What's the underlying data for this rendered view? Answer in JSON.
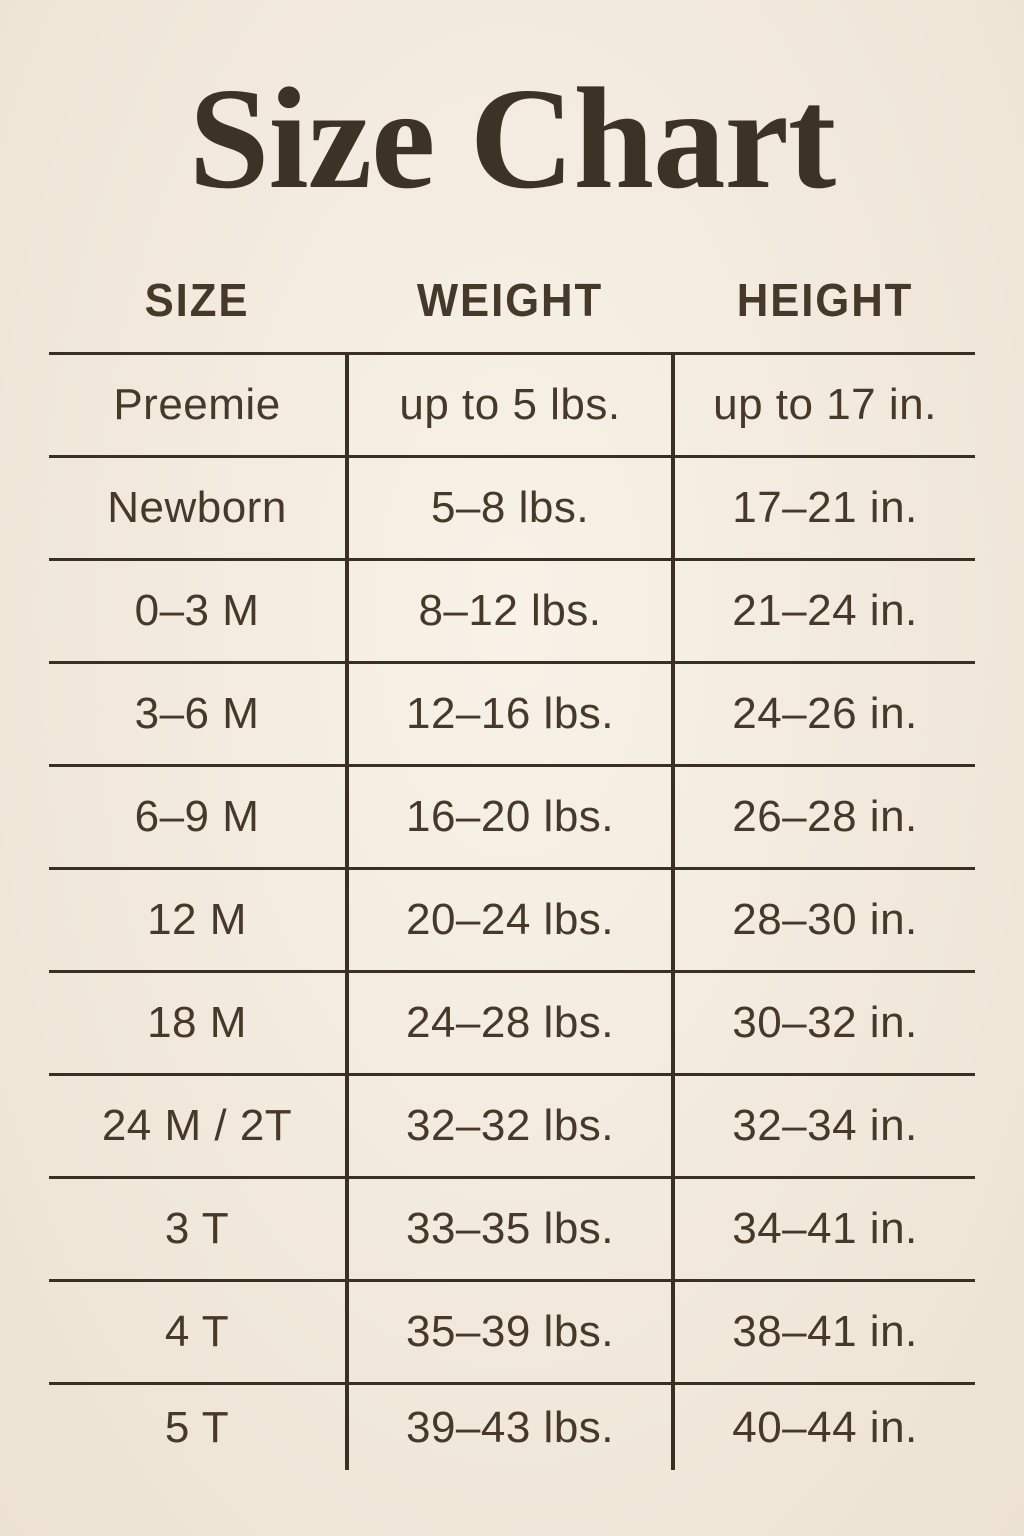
{
  "title": "Size Chart",
  "colors": {
    "bg": "#f2e9dc",
    "ink": "#46392a",
    "title": "#3d3226",
    "line": "#392f23"
  },
  "chart_data": {
    "type": "table",
    "title": "Size Chart",
    "columns": [
      "SIZE",
      "WEIGHT",
      "HEIGHT"
    ],
    "rows": [
      [
        "Preemie",
        "up to 5 lbs.",
        "up to 17 in."
      ],
      [
        "Newborn",
        "5–8 lbs.",
        "17–21 in."
      ],
      [
        "0–3 M",
        "8–12 lbs.",
        "21–24 in."
      ],
      [
        "3–6 M",
        "12–16 lbs.",
        "24–26 in."
      ],
      [
        "6–9 M",
        "16–20 lbs.",
        "26–28 in."
      ],
      [
        "12 M",
        "20–24 lbs.",
        "28–30 in."
      ],
      [
        "18 M",
        "24–28 lbs.",
        "30–32 in."
      ],
      [
        "24 M / 2T",
        "32–32 lbs.",
        "32–34 in."
      ],
      [
        "3 T",
        "33–35 lbs.",
        "34–41 in."
      ],
      [
        "4 T",
        "35–39 lbs.",
        "38–41 in."
      ],
      [
        "5 T",
        "39–43 lbs.",
        "40–44 in."
      ]
    ],
    "layout": {
      "grid": "horizontal rules between rows, vertical rules between columns only in body, no outer border, no bottom rule under last row",
      "header_position": "top"
    }
  }
}
